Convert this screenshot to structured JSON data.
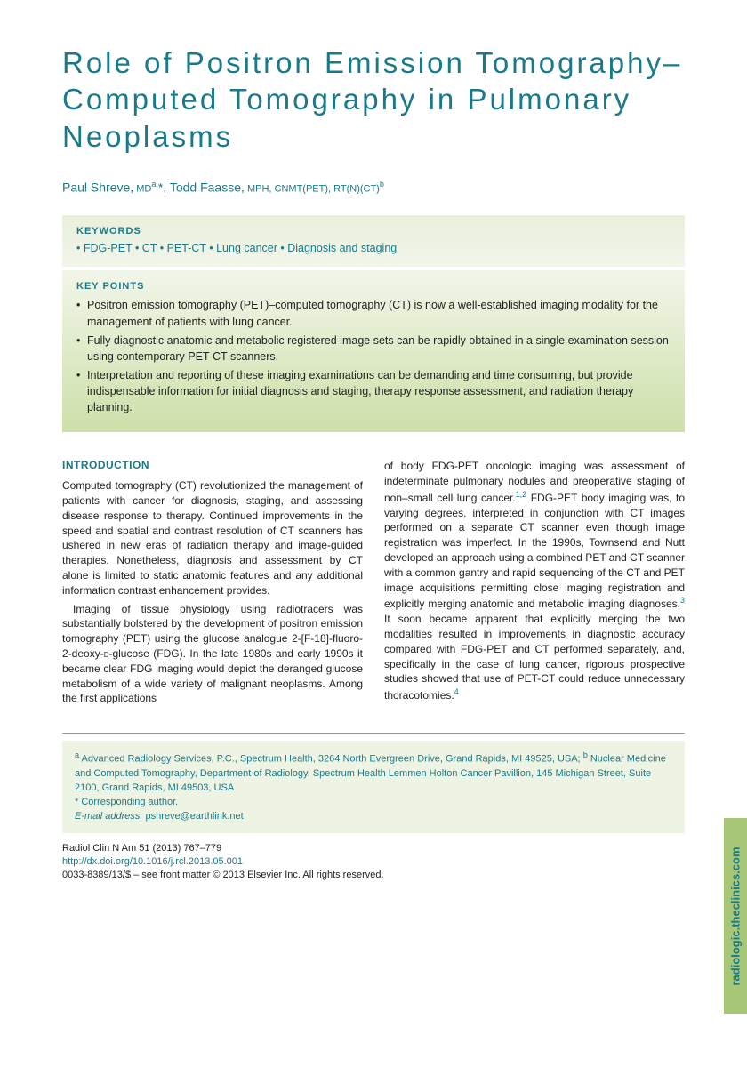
{
  "title": "Role of Positron Emission Tomography–Computed Tomography in Pulmonary Neoplasms",
  "authors": {
    "a1_name": "Paul Shreve,",
    "a1_cred": " MD",
    "a1_sup": "a,",
    "a1_corr": "*",
    "sep": ", ",
    "a2_name": "Todd Faasse,",
    "a2_cred": " MPH, CNMT(PET), RT(N)(CT)",
    "a2_sup": "b"
  },
  "keywords": {
    "label": "KEYWORDS",
    "items": "• FDG-PET • CT • PET-CT • Lung cancer • Diagnosis and staging"
  },
  "keypoints": {
    "label": "KEY POINTS",
    "p1": "Positron emission tomography (PET)–computed tomography (CT) is now a well-established imaging modality for the management of patients with lung cancer.",
    "p2": "Fully diagnostic anatomic and metabolic registered image sets can be rapidly obtained in a single examination session using contemporary PET-CT scanners.",
    "p3": "Interpretation and reporting of these imaging examinations can be demanding and time consuming, but provide indispensable information for initial diagnosis and staging, therapy response assessment, and radiation therapy planning."
  },
  "intro": {
    "head": "INTRODUCTION",
    "p1": "Computed tomography (CT) revolutionized the management of patients with cancer for diagnosis, staging, and assessing disease response to therapy. Continued improvements in the speed and spatial and contrast resolution of CT scanners has ushered in new eras of radiation therapy and image-guided therapies. Nonetheless, diagnosis and assessment by CT alone is limited to static anatomic features and any additional information contrast enhancement provides.",
    "p2a": "Imaging of tissue physiology using radiotracers was substantially bolstered by the development of positron emission tomography (PET) using the glucose analogue 2-[F-18]-fluoro-2-deoxy-",
    "p2b": "-glucose (FDG). In the late 1980s and early 1990s it became clear FDG imaging would depict the deranged glucose metabolism of a wide variety of malignant neoplasms. Among the first applications",
    "col2a": "of body FDG-PET oncologic imaging was assessment of indeterminate pulmonary nodules and preoperative staging of non–small cell lung cancer.",
    "ref12": "1,2",
    "col2b": " FDG-PET body imaging was, to varying degrees, interpreted in conjunction with CT images performed on a separate CT scanner even though image registration was imperfect. In the 1990s, Townsend and Nutt developed an approach using a combined PET and CT scanner with a common gantry and rapid sequencing of the CT and PET image acquisitions permitting close imaging registration and explicitly merging anatomic and metabolic imaging diagnoses.",
    "ref3": "3",
    "col2c": " It soon became apparent that explicitly merging the two modalities resulted in improvements in diagnostic accuracy compared with FDG-PET and CT performed separately, and, specifically in the case of lung cancer, rigorous prospective studies showed that use of PET-CT could reduce unnecessary thoracotomies.",
    "ref4": "4"
  },
  "affil": {
    "a_sup": "a",
    "a_text": " Advanced Radiology Services, P.C., Spectrum Health, 3264 North Evergreen Drive, Grand Rapids, MI 49525, USA; ",
    "b_sup": "b",
    "b_text": " Nuclear Medicine and Computed Tomography, Department of Radiology, Spectrum Health Lemmen Holton Cancer Pavillion, 145 Michigan Street, Suite 2100, Grand Rapids, MI 49503, USA",
    "corr": "* Corresponding author.",
    "email_label": "E-mail address:",
    "email": " pshreve@earthlink.net"
  },
  "footer": {
    "journal": "Radiol Clin N Am 51 (2013) 767–779",
    "doi": "http://dx.doi.org/10.1016/j.rcl.2013.05.001",
    "issn": "0033-8389/13/$ – see front matter © 2013 Elsevier Inc. All rights reserved."
  },
  "sidetab": "radiologic.theclinics.com",
  "colors": {
    "teal": "#1a7a8a",
    "green_light": "#e8f0dc",
    "green_dark": "#cce0a8",
    "tab_bg": "#a8c776"
  }
}
